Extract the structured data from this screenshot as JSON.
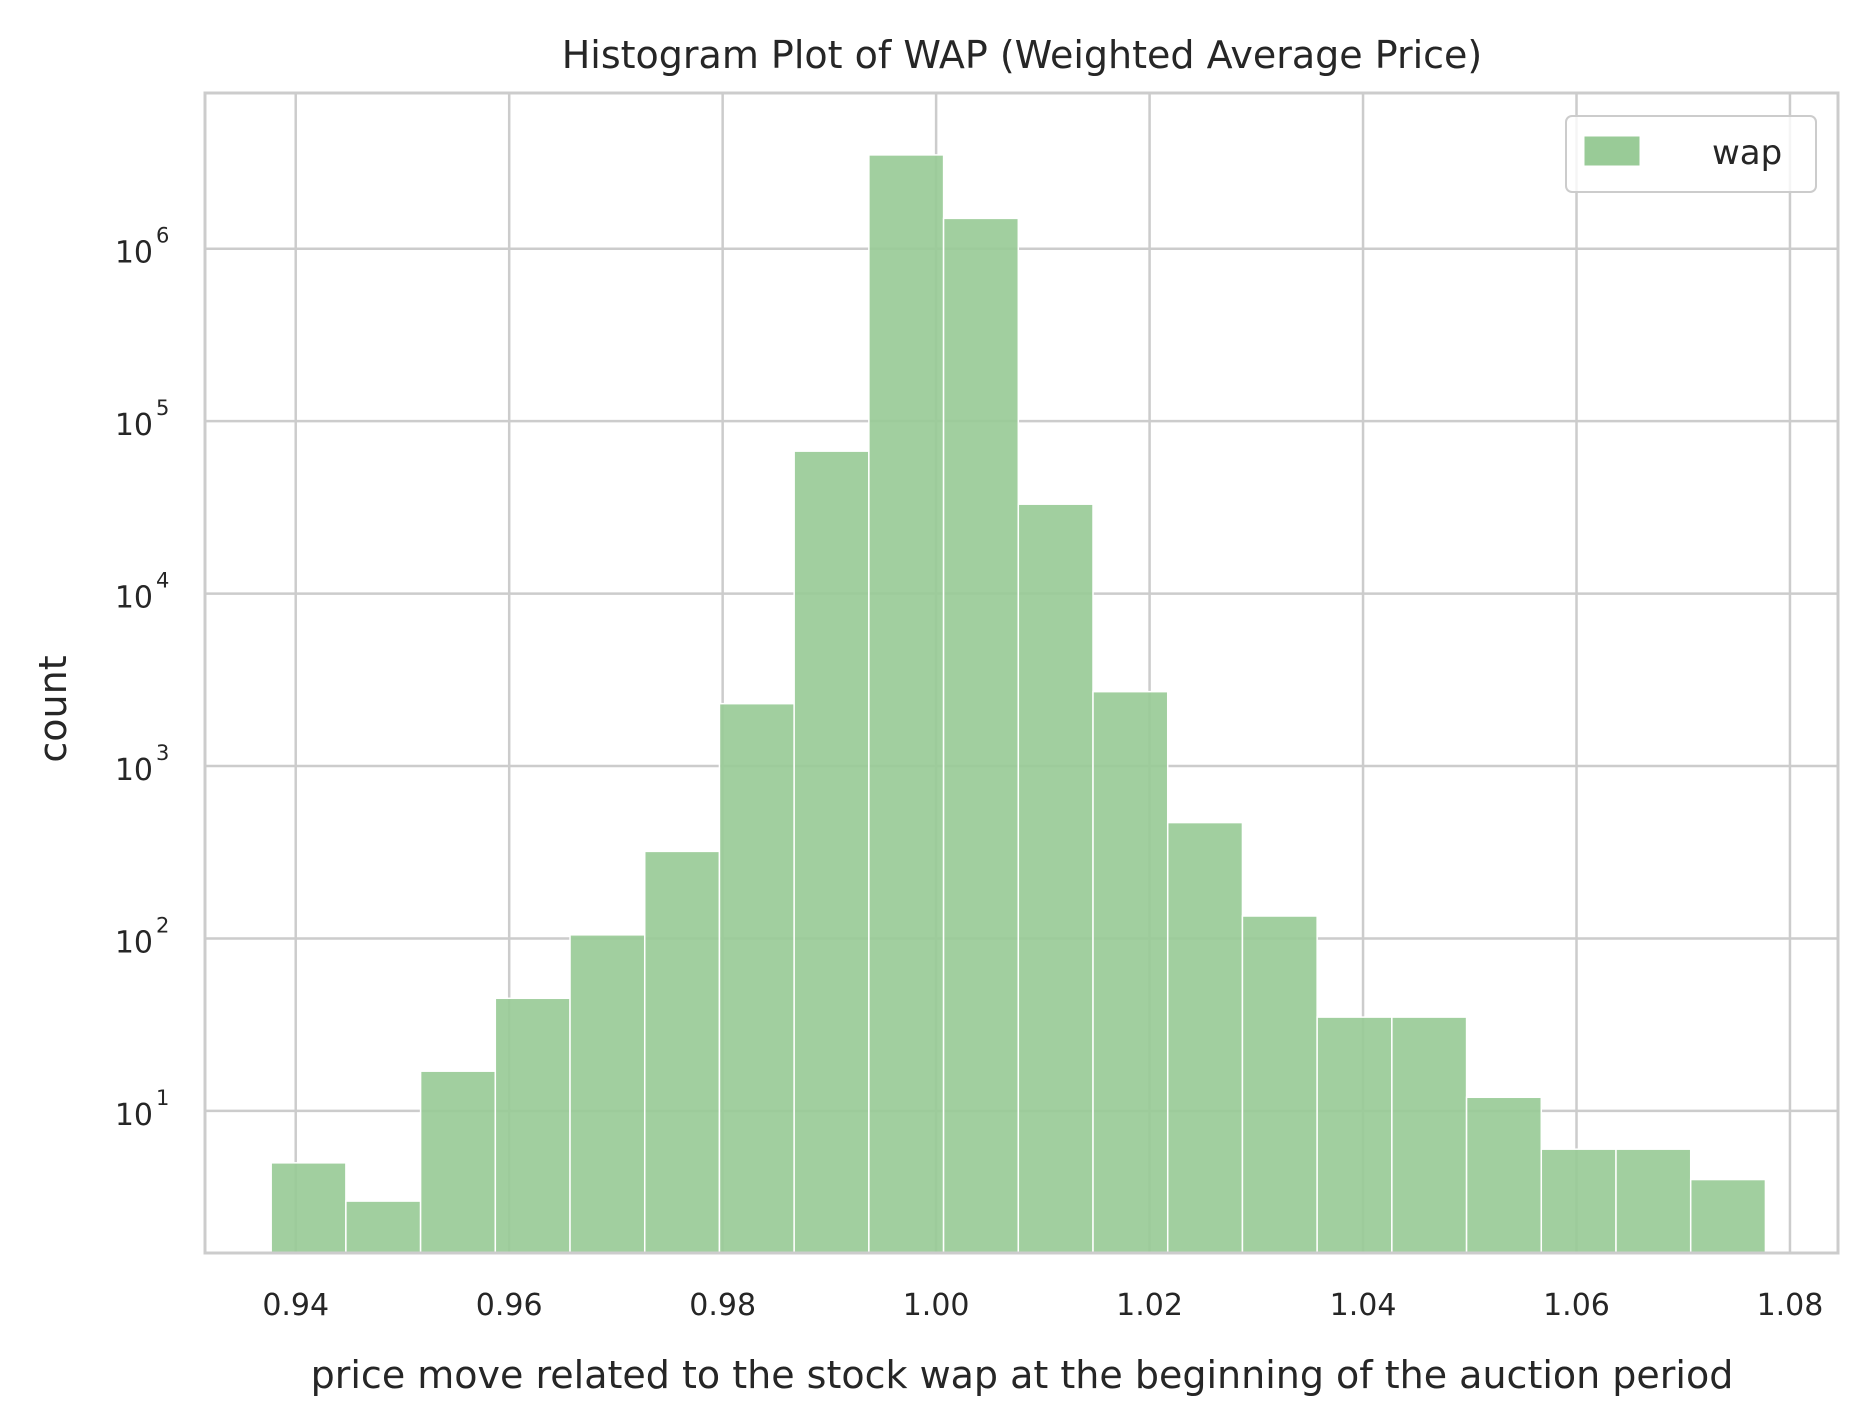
{
  "chart_data": {
    "type": "bar",
    "title": "Histogram Plot of WAP (Weighted Average Price)",
    "xlabel": "price move related to the stock wap at the beginning of the auction period",
    "ylabel": "count",
    "x_ticks": [
      "0.94",
      "0.96",
      "0.98",
      "1.00",
      "1.02",
      "1.04",
      "1.06",
      "1.08"
    ],
    "x_tick_values": [
      0.94,
      0.96,
      0.98,
      1.0,
      1.02,
      1.04,
      1.06,
      1.08
    ],
    "y_ticks": [
      {
        "base": "10",
        "exp": "1",
        "value": 10
      },
      {
        "base": "10",
        "exp": "2",
        "value": 100
      },
      {
        "base": "10",
        "exp": "3",
        "value": 1000
      },
      {
        "base": "10",
        "exp": "4",
        "value": 10000
      },
      {
        "base": "10",
        "exp": "5",
        "value": 100000
      },
      {
        "base": "10",
        "exp": "6",
        "value": 1000000
      }
    ],
    "xlim": [
      0.9315,
      1.0845
    ],
    "ylim": [
      1.5,
      8000000
    ],
    "yscale": "log",
    "grid": true,
    "legend": {
      "position": "top-right",
      "entries": [
        "wap"
      ]
    },
    "bar_color": "#99cb97",
    "bin_edges": [
      0.9377,
      0.9447,
      0.9517,
      0.9587,
      0.9657,
      0.9727,
      0.9797,
      0.9867,
      0.9937,
      1.0007,
      1.0077,
      1.0147,
      1.0217,
      1.0287,
      1.0357,
      1.0427,
      1.0497,
      1.0567,
      1.0637,
      1.0707,
      1.0777
    ],
    "series": [
      {
        "name": "wap",
        "values": [
          5,
          3,
          17,
          45,
          105,
          320,
          2300,
          67000,
          3500000,
          1500000,
          33000,
          2700,
          470,
          135,
          35,
          35,
          12,
          6,
          6,
          4
        ]
      }
    ]
  }
}
